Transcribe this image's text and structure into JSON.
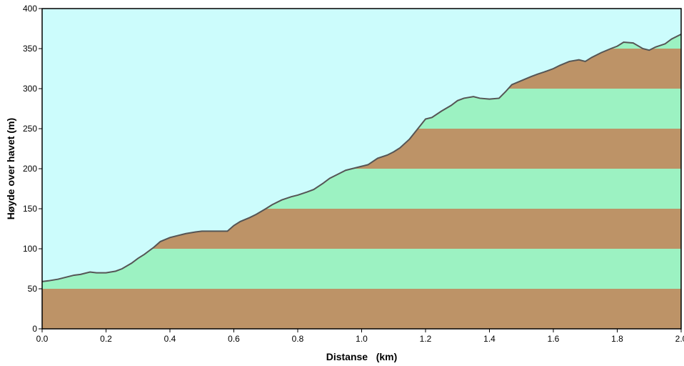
{
  "chart_data": {
    "type": "area",
    "xlabel": "Distanse   (km)",
    "ylabel": "Høyde over havet (m)",
    "xlim": [
      0.0,
      2.0
    ],
    "ylim": [
      0,
      400
    ],
    "x_ticks": [
      "0.0",
      "0.2",
      "0.4",
      "0.6",
      "0.8",
      "1.0",
      "1.2",
      "1.4",
      "1.6",
      "1.8",
      "2.0"
    ],
    "y_ticks": [
      "0",
      "50",
      "100",
      "150",
      "200",
      "250",
      "300",
      "350",
      "400"
    ],
    "band_height": 50,
    "colors": {
      "sky": "#ccfcfc",
      "band_dark": "#bd9367",
      "band_light": "#9cf2c2",
      "profile_line": "#555555",
      "axis": "#000000"
    },
    "series": [
      {
        "x": [
          0.0,
          0.02,
          0.05,
          0.08,
          0.1,
          0.12,
          0.15,
          0.17,
          0.2,
          0.23,
          0.25,
          0.28,
          0.3,
          0.32,
          0.35,
          0.37,
          0.4,
          0.43,
          0.45,
          0.48,
          0.5,
          0.53,
          0.55,
          0.58,
          0.6,
          0.62,
          0.65,
          0.67,
          0.7,
          0.72,
          0.75,
          0.78,
          0.8,
          0.83,
          0.85,
          0.88,
          0.9,
          0.93,
          0.95,
          0.98,
          1.0,
          1.02,
          1.05,
          1.08,
          1.1,
          1.12,
          1.15,
          1.18,
          1.2,
          1.22,
          1.25,
          1.28,
          1.3,
          1.32,
          1.35,
          1.37,
          1.4,
          1.43,
          1.45,
          1.47,
          1.5,
          1.53,
          1.55,
          1.58,
          1.6,
          1.62,
          1.65,
          1.68,
          1.7,
          1.72,
          1.75,
          1.78,
          1.8,
          1.82,
          1.85,
          1.88,
          1.9,
          1.92,
          1.95,
          1.97,
          2.0
        ],
        "y": [
          59,
          60,
          62,
          65,
          67,
          68,
          71,
          70,
          70,
          72,
          75,
          82,
          88,
          93,
          102,
          109,
          114,
          117,
          119,
          121,
          122,
          122,
          122,
          122,
          129,
          134,
          139,
          143,
          150,
          155,
          161,
          165,
          167,
          171,
          174,
          182,
          188,
          194,
          198,
          201,
          203,
          205,
          213,
          217,
          221,
          226,
          237,
          252,
          262,
          264,
          272,
          279,
          285,
          288,
          290,
          288,
          287,
          288,
          296,
          305,
          310,
          315,
          318,
          322,
          325,
          329,
          334,
          336,
          334,
          339,
          345,
          350,
          353,
          358,
          357,
          350,
          348,
          352,
          356,
          362,
          368
        ]
      }
    ]
  }
}
